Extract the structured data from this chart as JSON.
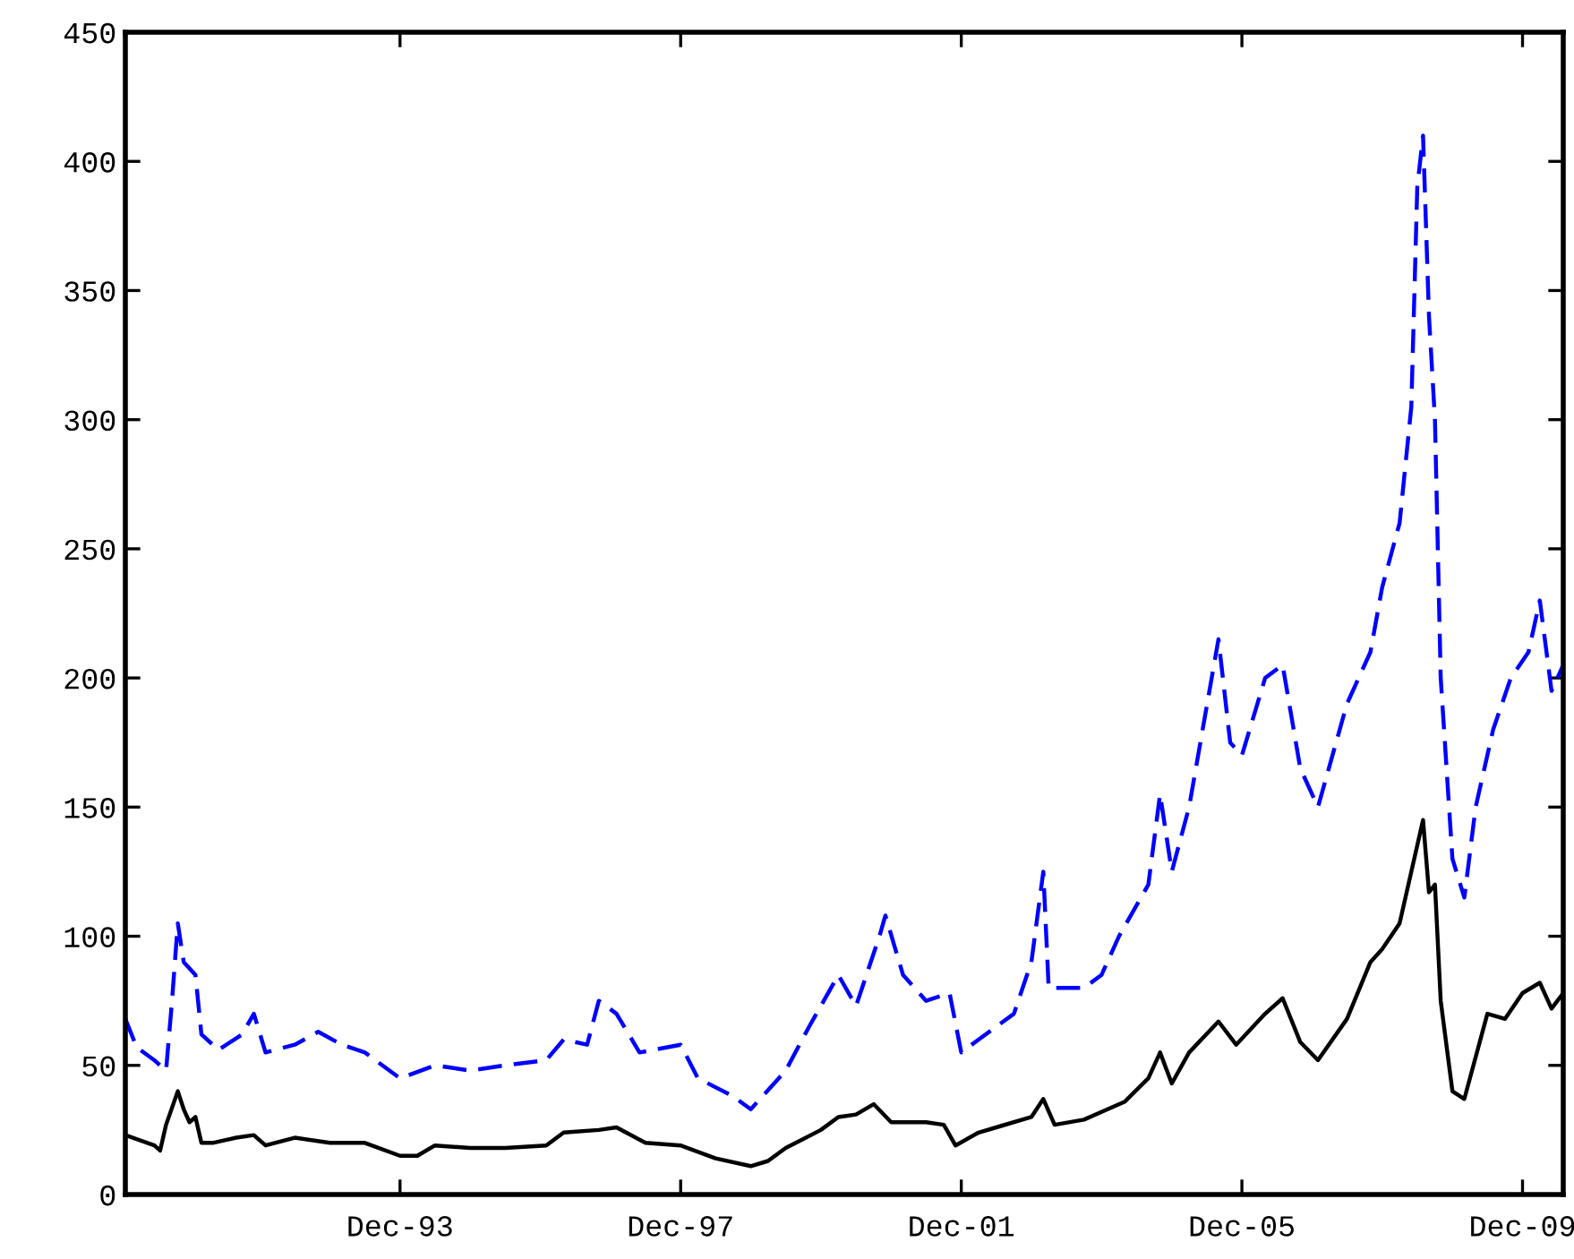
{
  "chart_data": {
    "type": "line",
    "xlim": [
      "1990-01",
      "2010-07"
    ],
    "ylim": [
      0,
      450
    ],
    "xticks": [
      {
        "value": "1993-12",
        "label": "Dec-93"
      },
      {
        "value": "1997-12",
        "label": "Dec-97"
      },
      {
        "value": "2001-12",
        "label": "Dec-01"
      },
      {
        "value": "2005-12",
        "label": "Dec-05"
      },
      {
        "value": "2009-12",
        "label": "Dec-09"
      }
    ],
    "yticks": [
      0,
      50,
      100,
      150,
      200,
      250,
      300,
      350,
      400,
      450
    ],
    "grid": false,
    "legend": false,
    "tick_labels": "xy",
    "series": [
      {
        "color": "#000000",
        "line_style": "solid",
        "x": [
          "1990-01",
          "1990-06",
          "1990-07",
          "1990-08",
          "1990-10",
          "1990-11",
          "1990-12",
          "1991-01",
          "1991-02",
          "1991-04",
          "1991-08",
          "1991-11",
          "1992-01",
          "1992-06",
          "1992-12",
          "1993-06",
          "1993-12",
          "1994-03",
          "1994-06",
          "1994-12",
          "1995-06",
          "1996-01",
          "1996-04",
          "1996-10",
          "1997-01",
          "1997-06",
          "1997-12",
          "1998-06",
          "1998-12",
          "1999-03",
          "1999-06",
          "1999-12",
          "2000-03",
          "2000-06",
          "2000-09",
          "2000-12",
          "2001-03",
          "2001-06",
          "2001-09",
          "2001-11",
          "2002-03",
          "2002-06",
          "2002-12",
          "2003-02",
          "2003-04",
          "2003-09",
          "2003-12",
          "2004-04",
          "2004-08",
          "2004-10",
          "2004-12",
          "2005-03",
          "2005-08",
          "2005-11",
          "2006-04",
          "2006-07",
          "2006-10",
          "2007-01",
          "2007-06",
          "2007-10",
          "2007-12",
          "2008-03",
          "2008-07",
          "2008-08",
          "2008-09",
          "2008-10",
          "2008-12",
          "2009-02",
          "2009-06",
          "2009-09",
          "2009-12",
          "2010-03",
          "2010-05",
          "2010-07"
        ],
        "values": [
          23,
          19,
          17,
          27,
          40,
          33,
          28,
          30,
          20,
          20,
          22,
          23,
          19,
          22,
          20,
          20,
          15,
          15,
          19,
          18,
          18,
          19,
          24,
          25,
          26,
          20,
          19,
          14,
          11,
          13,
          18,
          25,
          30,
          31,
          35,
          28,
          28,
          28,
          27,
          19,
          24,
          26,
          30,
          37,
          27,
          29,
          32,
          36,
          45,
          55,
          43,
          55,
          67,
          58,
          70,
          76,
          59,
          52,
          68,
          90,
          95,
          105,
          145,
          117,
          120,
          75,
          40,
          37,
          70,
          68,
          78,
          82,
          72,
          78
        ]
      },
      {
        "color": "#0000ff",
        "line_style": "dashed",
        "x": [
          "1990-01",
          "1990-03",
          "1990-06",
          "1990-08",
          "1990-09",
          "1990-10",
          "1990-11",
          "1991-01",
          "1991-02",
          "1991-05",
          "1991-09",
          "1991-11",
          "1992-01",
          "1992-06",
          "1992-10",
          "1993-02",
          "1993-06",
          "1993-12",
          "1994-06",
          "1994-12",
          "1995-06",
          "1996-01",
          "1996-04",
          "1996-08",
          "1996-10",
          "1997-01",
          "1997-05",
          "1997-12",
          "1998-03",
          "1998-09",
          "1998-12",
          "1999-06",
          "1999-10",
          "2000-03",
          "2000-06",
          "2000-10",
          "2000-11",
          "2001-02",
          "2001-06",
          "2001-10",
          "2001-12",
          "2002-03",
          "2002-09",
          "2002-12",
          "2003-02",
          "2003-03",
          "2003-09",
          "2003-12",
          "2004-03",
          "2004-08",
          "2004-10",
          "2004-12",
          "2005-03",
          "2005-08",
          "2005-10",
          "2005-12",
          "2006-04",
          "2006-07",
          "2006-10",
          "2007-01",
          "2007-06",
          "2007-10",
          "2007-12",
          "2008-03",
          "2008-05",
          "2008-06",
          "2008-07",
          "2008-08",
          "2008-09",
          "2008-10",
          "2008-12",
          "2009-02",
          "2009-04",
          "2009-07",
          "2009-10",
          "2010-01",
          "2010-03",
          "2010-05",
          "2010-07"
        ],
        "values": [
          68,
          57,
          52,
          48,
          75,
          105,
          90,
          85,
          62,
          56,
          62,
          70,
          55,
          58,
          63,
          58,
          55,
          45,
          50,
          48,
          50,
          52,
          60,
          58,
          75,
          70,
          55,
          58,
          45,
          38,
          33,
          48,
          65,
          85,
          73,
          100,
          108,
          85,
          75,
          78,
          55,
          60,
          70,
          90,
          125,
          80,
          80,
          85,
          100,
          120,
          155,
          125,
          150,
          215,
          175,
          170,
          200,
          205,
          165,
          150,
          190,
          210,
          235,
          260,
          305,
          390,
          410,
          340,
          300,
          200,
          130,
          115,
          150,
          180,
          200,
          210,
          230,
          195,
          205
        ]
      }
    ]
  }
}
